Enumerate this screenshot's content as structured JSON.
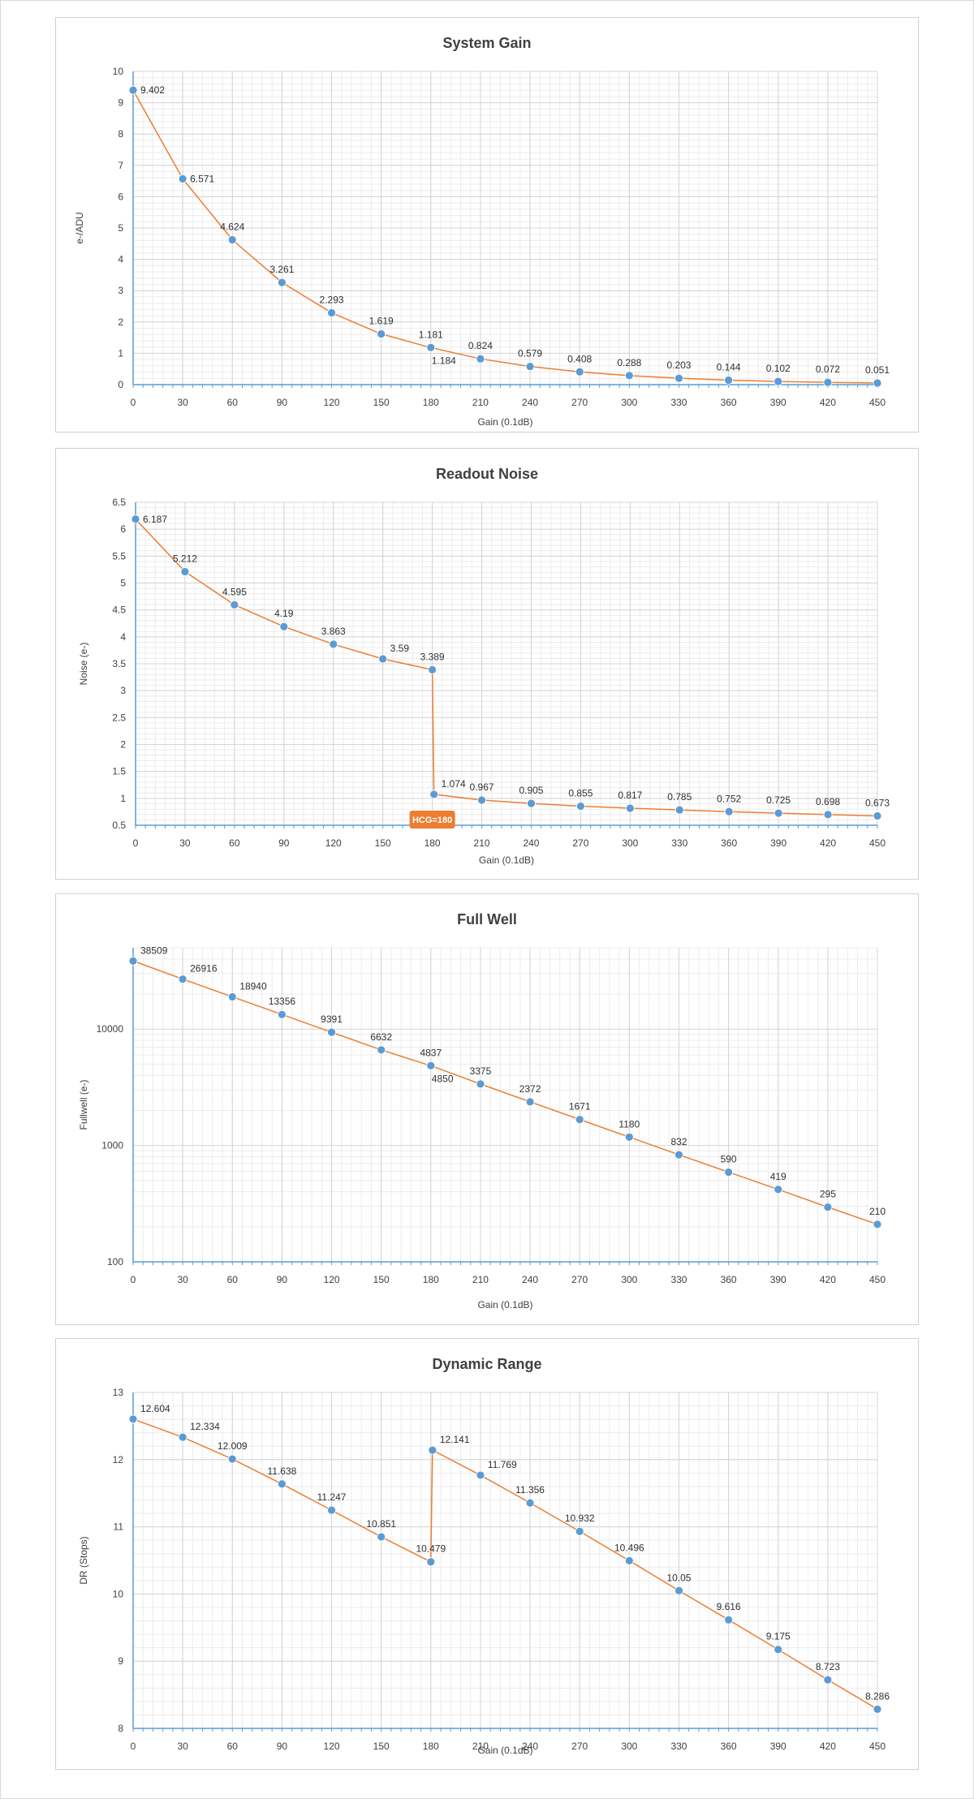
{
  "chart_data": [
    {
      "type": "line",
      "title": "System Gain",
      "xlabel": "Gain (0.1dB)",
      "ylabel": "e-/ADU",
      "xlim": [
        0,
        450
      ],
      "ylim": [
        0,
        10
      ],
      "yscale": "linear",
      "xticks": [
        0,
        30,
        60,
        90,
        120,
        150,
        180,
        210,
        240,
        270,
        300,
        330,
        360,
        390,
        420,
        450
      ],
      "yticks": [
        0,
        1,
        2,
        3,
        4,
        5,
        6,
        7,
        8,
        9,
        10
      ],
      "grid": true,
      "line_color": "#ED7D31",
      "marker_color": "#5B9BD5",
      "points": [
        {
          "x": 0,
          "y": 9.402,
          "label": "9.402",
          "pos": "right"
        },
        {
          "x": 30,
          "y": 6.571,
          "label": "6.571",
          "pos": "right"
        },
        {
          "x": 60,
          "y": 4.624,
          "label": "4.624",
          "pos": "above"
        },
        {
          "x": 90,
          "y": 3.261,
          "label": "3.261",
          "pos": "above"
        },
        {
          "x": 120,
          "y": 2.293,
          "label": "2.293",
          "pos": "above"
        },
        {
          "x": 150,
          "y": 1.619,
          "label": "1.619",
          "pos": "above"
        },
        {
          "x": 180,
          "y": 1.181,
          "label": "1.181",
          "pos": "above"
        },
        {
          "x": 180,
          "y": 1.184,
          "label": "1.184",
          "pos": "below-right"
        },
        {
          "x": 210,
          "y": 0.824,
          "label": "0.824",
          "pos": "above"
        },
        {
          "x": 240,
          "y": 0.579,
          "label": "0.579",
          "pos": "above"
        },
        {
          "x": 270,
          "y": 0.408,
          "label": "0.408",
          "pos": "above"
        },
        {
          "x": 300,
          "y": 0.288,
          "label": "0.288",
          "pos": "above"
        },
        {
          "x": 330,
          "y": 0.203,
          "label": "0.203",
          "pos": "above"
        },
        {
          "x": 360,
          "y": 0.144,
          "label": "0.144",
          "pos": "above"
        },
        {
          "x": 390,
          "y": 0.102,
          "label": "0.102",
          "pos": "above"
        },
        {
          "x": 420,
          "y": 0.072,
          "label": "0.072",
          "pos": "above"
        },
        {
          "x": 450,
          "y": 0.051,
          "label": "0.051",
          "pos": "above"
        }
      ]
    },
    {
      "type": "line",
      "title": "Readout Noise",
      "xlabel": "Gain (0.1dB)",
      "ylabel": "Noise (e-)",
      "xlim": [
        0,
        450
      ],
      "ylim": [
        0.5,
        6.5
      ],
      "yscale": "linear",
      "xticks": [
        0,
        30,
        60,
        90,
        120,
        150,
        180,
        210,
        240,
        270,
        300,
        330,
        360,
        390,
        420,
        450
      ],
      "yticks": [
        0.5,
        1,
        1.5,
        2,
        2.5,
        3,
        3.5,
        4,
        4.5,
        5,
        5.5,
        6,
        6.5
      ],
      "grid": true,
      "line_color": "#ED7D31",
      "marker_color": "#5B9BD5",
      "annotation": {
        "text": "HCG=180",
        "x": 180,
        "color": "#ED7D31"
      },
      "points": [
        {
          "x": 0,
          "y": 6.187,
          "label": "6.187",
          "pos": "right"
        },
        {
          "x": 30,
          "y": 5.212,
          "label": "5.212",
          "pos": "above"
        },
        {
          "x": 60,
          "y": 4.595,
          "label": "4.595",
          "pos": "above"
        },
        {
          "x": 90,
          "y": 4.19,
          "label": "4.19",
          "pos": "above"
        },
        {
          "x": 120,
          "y": 3.863,
          "label": "3.863",
          "pos": "above"
        },
        {
          "x": 150,
          "y": 3.59,
          "label": "3.59",
          "pos": "above-right"
        },
        {
          "x": 180,
          "y": 3.389,
          "label": "3.389",
          "pos": "above"
        },
        {
          "x": 181,
          "y": 1.074,
          "label": "1.074",
          "pos": "above-right"
        },
        {
          "x": 210,
          "y": 0.967,
          "label": "0.967",
          "pos": "above"
        },
        {
          "x": 240,
          "y": 0.905,
          "label": "0.905",
          "pos": "above"
        },
        {
          "x": 270,
          "y": 0.855,
          "label": "0.855",
          "pos": "above"
        },
        {
          "x": 300,
          "y": 0.817,
          "label": "0.817",
          "pos": "above"
        },
        {
          "x": 330,
          "y": 0.785,
          "label": "0.785",
          "pos": "above"
        },
        {
          "x": 360,
          "y": 0.752,
          "label": "0.752",
          "pos": "above"
        },
        {
          "x": 390,
          "y": 0.725,
          "label": "0.725",
          "pos": "above"
        },
        {
          "x": 420,
          "y": 0.698,
          "label": "0.698",
          "pos": "above"
        },
        {
          "x": 450,
          "y": 0.673,
          "label": "0.673",
          "pos": "above"
        }
      ]
    },
    {
      "type": "line",
      "title": "Full Well",
      "xlabel": "Gain (0.1dB)",
      "ylabel": "Fullwell (e-)",
      "xlim": [
        0,
        450
      ],
      "ylim": [
        100,
        50000
      ],
      "yscale": "log",
      "xticks": [
        0,
        30,
        60,
        90,
        120,
        150,
        180,
        210,
        240,
        270,
        300,
        330,
        360,
        390,
        420,
        450
      ],
      "yticks": [
        100,
        1000,
        10000
      ],
      "grid": true,
      "line_color": "#ED7D31",
      "marker_color": "#5B9BD5",
      "points": [
        {
          "x": 0,
          "y": 38509,
          "label": "38509",
          "pos": "above-right"
        },
        {
          "x": 30,
          "y": 26916,
          "label": "26916",
          "pos": "above-right"
        },
        {
          "x": 60,
          "y": 18940,
          "label": "18940",
          "pos": "above-right"
        },
        {
          "x": 90,
          "y": 13356,
          "label": "13356",
          "pos": "above"
        },
        {
          "x": 120,
          "y": 9391,
          "label": "9391",
          "pos": "above"
        },
        {
          "x": 150,
          "y": 6632,
          "label": "6632",
          "pos": "above"
        },
        {
          "x": 180,
          "y": 4837,
          "label": "4837",
          "pos": "above"
        },
        {
          "x": 180,
          "y": 4850,
          "label": "4850",
          "pos": "below-right"
        },
        {
          "x": 210,
          "y": 3375,
          "label": "3375",
          "pos": "above"
        },
        {
          "x": 240,
          "y": 2372,
          "label": "2372",
          "pos": "above"
        },
        {
          "x": 270,
          "y": 1671,
          "label": "1671",
          "pos": "above"
        },
        {
          "x": 300,
          "y": 1180,
          "label": "1180",
          "pos": "above"
        },
        {
          "x": 330,
          "y": 832,
          "label": "832",
          "pos": "above"
        },
        {
          "x": 360,
          "y": 590,
          "label": "590",
          "pos": "above"
        },
        {
          "x": 390,
          "y": 419,
          "label": "419",
          "pos": "above"
        },
        {
          "x": 420,
          "y": 295,
          "label": "295",
          "pos": "above"
        },
        {
          "x": 450,
          "y": 210,
          "label": "210",
          "pos": "above"
        }
      ]
    },
    {
      "type": "line",
      "title": "Dynamic Range",
      "xlabel": "Gain (0.1dB)",
      "ylabel": "DR (Stops)",
      "xlim": [
        0,
        450
      ],
      "ylim": [
        8,
        13
      ],
      "yscale": "linear",
      "xticks": [
        0,
        30,
        60,
        90,
        120,
        150,
        180,
        210,
        240,
        270,
        300,
        330,
        360,
        390,
        420,
        450
      ],
      "yticks": [
        8,
        9,
        10,
        11,
        12,
        13
      ],
      "grid": true,
      "line_color": "#ED7D31",
      "marker_color": "#5B9BD5",
      "points": [
        {
          "x": 0,
          "y": 12.604,
          "label": "12.604",
          "pos": "above-right"
        },
        {
          "x": 30,
          "y": 12.334,
          "label": "12.334",
          "pos": "above-right"
        },
        {
          "x": 60,
          "y": 12.009,
          "label": "12.009",
          "pos": "above"
        },
        {
          "x": 90,
          "y": 11.638,
          "label": "11.638",
          "pos": "above"
        },
        {
          "x": 120,
          "y": 11.247,
          "label": "11.247",
          "pos": "above"
        },
        {
          "x": 150,
          "y": 10.851,
          "label": "10.851",
          "pos": "above"
        },
        {
          "x": 180,
          "y": 10.479,
          "label": "10.479",
          "pos": "above"
        },
        {
          "x": 181,
          "y": 12.141,
          "label": "12.141",
          "pos": "above-right"
        },
        {
          "x": 210,
          "y": 11.769,
          "label": "11.769",
          "pos": "above-right"
        },
        {
          "x": 240,
          "y": 11.356,
          "label": "11.356",
          "pos": "above"
        },
        {
          "x": 270,
          "y": 10.932,
          "label": "10.932",
          "pos": "above"
        },
        {
          "x": 300,
          "y": 10.496,
          "label": "10.496",
          "pos": "above"
        },
        {
          "x": 330,
          "y": 10.05,
          "label": "10.05",
          "pos": "above"
        },
        {
          "x": 360,
          "y": 9.616,
          "label": "9.616",
          "pos": "above"
        },
        {
          "x": 390,
          "y": 9.175,
          "label": "9.175",
          "pos": "above"
        },
        {
          "x": 420,
          "y": 8.723,
          "label": "8.723",
          "pos": "above"
        },
        {
          "x": 450,
          "y": 8.286,
          "label": "8.286",
          "pos": "above"
        }
      ]
    }
  ]
}
